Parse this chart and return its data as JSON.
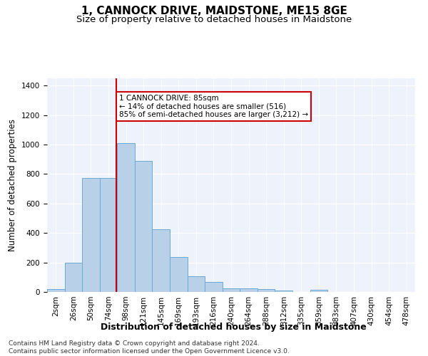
{
  "title": "1, CANNOCK DRIVE, MAIDSTONE, ME15 8GE",
  "subtitle": "Size of property relative to detached houses in Maidstone",
  "xlabel": "Distribution of detached houses by size in Maidstone",
  "ylabel": "Number of detached properties",
  "categories": [
    "2sqm",
    "26sqm",
    "50sqm",
    "74sqm",
    "98sqm",
    "121sqm",
    "145sqm",
    "169sqm",
    "193sqm",
    "216sqm",
    "240sqm",
    "264sqm",
    "288sqm",
    "312sqm",
    "335sqm",
    "359sqm",
    "383sqm",
    "407sqm",
    "430sqm",
    "454sqm",
    "478sqm"
  ],
  "values": [
    20,
    200,
    775,
    775,
    1010,
    890,
    425,
    235,
    108,
    68,
    25,
    25,
    18,
    8,
    0,
    15,
    0,
    0,
    0,
    0,
    0
  ],
  "bar_color": "#b8d0e8",
  "bar_edgecolor": "#6aaad4",
  "vline_color": "#cc0000",
  "annotation_text": "1 CANNOCK DRIVE: 85sqm\n← 14% of detached houses are smaller (516)\n85% of semi-detached houses are larger (3,212) →",
  "annotation_box_color": "#ffffff",
  "annotation_box_edgecolor": "#cc0000",
  "footer": "Contains HM Land Registry data © Crown copyright and database right 2024.\nContains public sector information licensed under the Open Government Licence v3.0.",
  "ylim": [
    0,
    1450
  ],
  "yticks": [
    0,
    200,
    400,
    600,
    800,
    1000,
    1200,
    1400
  ],
  "background_color": "#eef2fa",
  "title_fontsize": 11,
  "subtitle_fontsize": 9.5,
  "xlabel_fontsize": 9,
  "ylabel_fontsize": 8.5,
  "tick_fontsize": 7.5,
  "footer_fontsize": 6.5
}
